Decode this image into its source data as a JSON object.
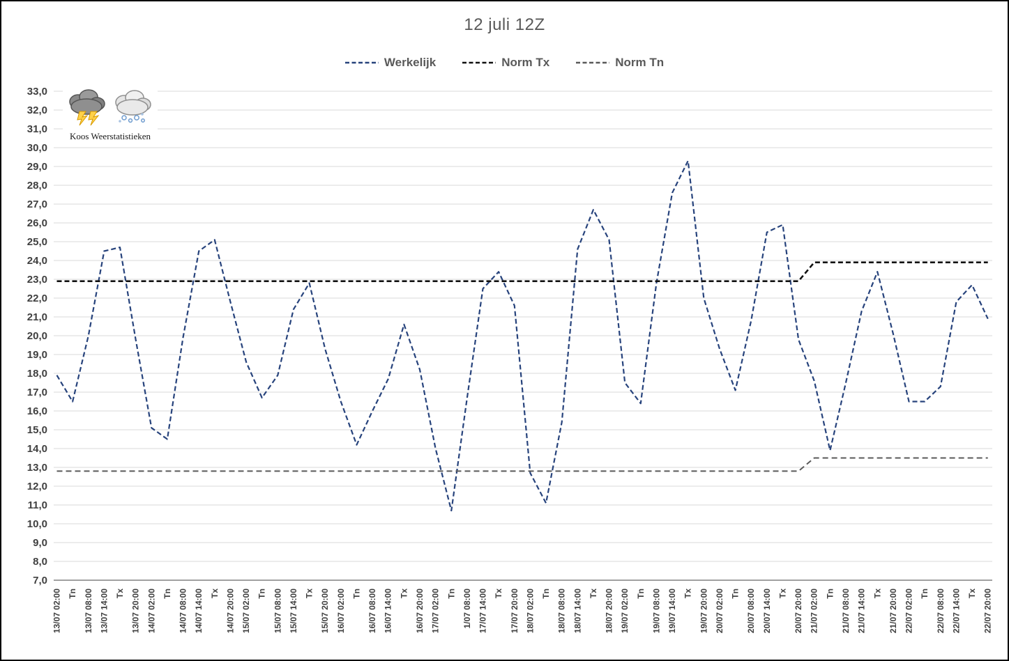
{
  "title": "12 juli 12Z",
  "branding": {
    "name": "Koos Weerstatistieken"
  },
  "colors": {
    "werkelijk": "#27437c",
    "norm_tx": "#111111",
    "norm_tn": "#595959",
    "gridline": "#d9d9d9",
    "axis": "#808080",
    "tick_text": "#404040",
    "title_text": "#595959"
  },
  "legend": [
    {
      "label": "Werkelijk",
      "color": "#27437c"
    },
    {
      "label": "Norm Tx",
      "color": "#111111"
    },
    {
      "label": "Norm Tn",
      "color": "#595959"
    }
  ],
  "chart_data": {
    "type": "line",
    "title": "12 juli 12Z",
    "xlabel": "",
    "ylabel": "",
    "ylim": [
      7.0,
      33.0
    ],
    "ytick_step": 1.0,
    "grid": "horizontal",
    "legend_position": "top",
    "y_ticks": [
      "33,0",
      "32,0",
      "31,0",
      "30,0",
      "29,0",
      "28,0",
      "27,0",
      "26,0",
      "25,0",
      "24,0",
      "23,0",
      "22,0",
      "21,0",
      "20,0",
      "19,0",
      "18,0",
      "17,0",
      "16,0",
      "15,0",
      "14,0",
      "13,0",
      "12,0",
      "11,0",
      "10,0",
      "9,0",
      "8,0",
      "7,0"
    ],
    "categories": [
      "13/07 02:00",
      "Tn",
      "13/07 08:00",
      "13/07 14:00",
      "Tx",
      "13/07 20:00",
      "14/07 02:00",
      "Tn",
      "14/07 08:00",
      "14/07 14:00",
      "Tx",
      "14/07 20:00",
      "15/07 02:00",
      "Tn",
      "15/07 08:00",
      "15/07 14:00",
      "Tx",
      "15/07 20:00",
      "16/07 02:00",
      "Tn",
      "16/07 08:00",
      "16/07 14:00",
      "Tx",
      "16/07 20:00",
      "17/07 02:00",
      "Tn",
      "1/07 08:00",
      "17/07 14:00",
      "Tx",
      "17/07 20:00",
      "18/07 02:00",
      "Tn",
      "18/07 08:00",
      "18/07 14:00",
      "Tx",
      "18/07 20:00",
      "19/07 02:00",
      "Tn",
      "19/07 08:00",
      "19/07 14:00",
      "Tx",
      "19/07 20:00",
      "20/07 02:00",
      "Tn",
      "20/07 08:00",
      "20/07 14:00",
      "Tx",
      "20/07 20:00",
      "21/07 02:00",
      "Tn",
      "21/07 08:00",
      "21/07 14:00",
      "Tx",
      "21/07 20:00",
      "22/07 02:00",
      "Tn",
      "22/07 08:00",
      "22/07 14:00",
      "Tx",
      "22/07 20:00"
    ],
    "series": [
      {
        "name": "Werkelijk",
        "color": "#27437c",
        "dash": "7 4",
        "width": 2.2,
        "values": [
          17.9,
          16.5,
          20.0,
          24.5,
          24.7,
          19.8,
          15.1,
          14.5,
          19.9,
          24.5,
          25.1,
          21.8,
          18.6,
          16.7,
          17.9,
          21.4,
          22.8,
          19.3,
          16.5,
          14.2,
          16.0,
          17.7,
          20.6,
          18.2,
          14.0,
          10.7,
          16.7,
          22.5,
          23.4,
          21.6,
          12.7,
          11.1,
          15.4,
          24.6,
          26.7,
          25.1,
          17.5,
          16.4,
          22.8,
          27.6,
          29.3,
          22.0,
          19.3,
          17.1,
          20.8,
          25.5,
          25.9,
          19.8,
          17.6,
          13.9,
          17.5,
          21.3,
          23.4,
          20.1,
          16.5,
          16.5,
          17.3,
          21.8,
          22.7,
          20.9
        ]
      },
      {
        "name": "Norm Tx",
        "color": "#111111",
        "dash": "7 4",
        "width": 2.6,
        "values": [
          22.9,
          22.9,
          22.9,
          22.9,
          22.9,
          22.9,
          22.9,
          22.9,
          22.9,
          22.9,
          22.9,
          22.9,
          22.9,
          22.9,
          22.9,
          22.9,
          22.9,
          22.9,
          22.9,
          22.9,
          22.9,
          22.9,
          22.9,
          22.9,
          22.9,
          22.9,
          22.9,
          22.9,
          22.9,
          22.9,
          22.9,
          22.9,
          22.9,
          22.9,
          22.9,
          22.9,
          22.9,
          22.9,
          22.9,
          22.9,
          22.9,
          22.9,
          22.9,
          22.9,
          22.9,
          22.9,
          22.9,
          22.9,
          23.9,
          23.9,
          23.9,
          23.9,
          23.9,
          23.9,
          23.9,
          23.9,
          23.9,
          23.9,
          23.9,
          23.9
        ]
      },
      {
        "name": "Norm Tn",
        "color": "#595959",
        "dash": "8 5",
        "width": 2.0,
        "values": [
          12.8,
          12.8,
          12.8,
          12.8,
          12.8,
          12.8,
          12.8,
          12.8,
          12.8,
          12.8,
          12.8,
          12.8,
          12.8,
          12.8,
          12.8,
          12.8,
          12.8,
          12.8,
          12.8,
          12.8,
          12.8,
          12.8,
          12.8,
          12.8,
          12.8,
          12.8,
          12.8,
          12.8,
          12.8,
          12.8,
          12.8,
          12.8,
          12.8,
          12.8,
          12.8,
          12.8,
          12.8,
          12.8,
          12.8,
          12.8,
          12.8,
          12.8,
          12.8,
          12.8,
          12.8,
          12.8,
          12.8,
          12.8,
          13.5,
          13.5,
          13.5,
          13.5,
          13.5,
          13.5,
          13.5,
          13.5,
          13.5,
          13.5,
          13.5,
          13.5
        ]
      }
    ]
  }
}
